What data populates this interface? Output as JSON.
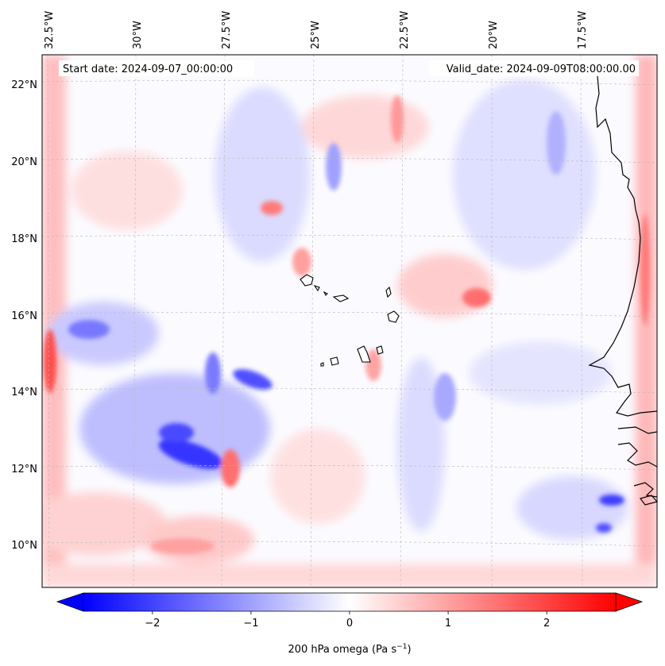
{
  "header": {
    "start_date": "Start date: 2024-09-07_00:00:00",
    "valid_date": "Valid_date: 2024-09-09T08:00:00.00"
  },
  "map": {
    "lon_labels": [
      "32.5°W",
      "30°W",
      "27.5°W",
      "25°W",
      "22.5°W",
      "20°W",
      "17.5°W"
    ],
    "lat_labels": [
      "22°N",
      "20°N",
      "18°N",
      "16°N",
      "14°N",
      "12°N",
      "10°N"
    ],
    "lon_values": [
      -32.5,
      -30,
      -27.5,
      -25,
      -22.5,
      -20,
      -17.5
    ],
    "lat_values": [
      22,
      20,
      18,
      16,
      14,
      12,
      10
    ],
    "lon_range": [
      -32.7,
      -15.5
    ],
    "lat_range": [
      8.9,
      22.8
    ],
    "field": "200 hPa omega",
    "colormap": "bwr",
    "gridlines": true
  },
  "colorbar": {
    "min": -2.7,
    "max": 2.7,
    "tick_values": [
      -2,
      -1,
      0,
      1,
      2
    ],
    "tick_labels": [
      "−2",
      "−1",
      "0",
      "1",
      "2"
    ],
    "label": "200 hPa omega (Pa s",
    "label_sup": "−1",
    "label_end": ")",
    "extend": "both",
    "low_color": "#0000ff",
    "mid_color": "#ffffff",
    "high_color": "#ff0000"
  }
}
